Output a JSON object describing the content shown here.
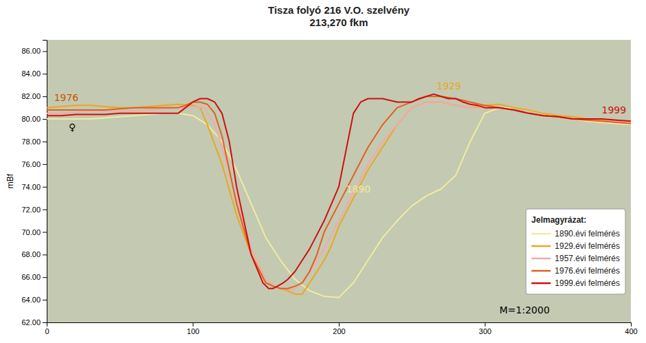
{
  "chart_data": {
    "type": "line",
    "title": "Tisza folyó 216 V.O. szelvény\n213,270 fkm",
    "ylabel": "mBf",
    "xlim": [
      0,
      400
    ],
    "ylim": [
      62.0,
      87.0
    ],
    "xticks": [
      0,
      100,
      200,
      300,
      400
    ],
    "yticks": [
      {
        "value": 62.0,
        "label": "62.00"
      },
      {
        "value": 64.0,
        "label": "64.00"
      },
      {
        "value": 66.0,
        "label": "66.00"
      },
      {
        "value": 68.0,
        "label": "68.00"
      },
      {
        "value": 70.0,
        "label": "70.00"
      },
      {
        "value": 72.0,
        "label": "72.00"
      },
      {
        "value": 74.0,
        "label": "74.00"
      },
      {
        "value": 76.0,
        "label": "76.00"
      },
      {
        "value": 78.0,
        "label": "78.00"
      },
      {
        "value": 80.0,
        "label": "80.00"
      },
      {
        "value": 82.0,
        "label": "82.00"
      },
      {
        "value": 84.0,
        "label": "84.00"
      },
      {
        "value": 86.0,
        "label": "86.00"
      }
    ],
    "grid": false,
    "legend": "lower right",
    "legend_title": "Jelmagyrázat:",
    "series": [
      {
        "name": "1890.évi felmérés",
        "color": "#f0eca0",
        "x": [
          0,
          10,
          20,
          30,
          40,
          50,
          60,
          70,
          80,
          90,
          100,
          110,
          120,
          130,
          140,
          150,
          160,
          170,
          180,
          190,
          200,
          210,
          220,
          230,
          240,
          250,
          260,
          270,
          280,
          290,
          300,
          310,
          320,
          330,
          340,
          350,
          360,
          370,
          380,
          390,
          400
        ],
        "values": [
          80.0,
          80.0,
          80.0,
          80.0,
          80.1,
          80.2,
          80.3,
          80.4,
          80.5,
          80.5,
          80.3,
          79.5,
          78.0,
          75.5,
          72.5,
          69.5,
          67.5,
          65.8,
          64.8,
          64.3,
          64.2,
          65.5,
          67.5,
          69.5,
          71.0,
          72.3,
          73.2,
          73.8,
          75.0,
          78.0,
          80.5,
          81.0,
          81.0,
          80.8,
          80.5,
          80.2,
          80.0,
          79.8,
          79.7,
          79.6,
          79.5
        ]
      },
      {
        "name": "1929.évi felmérés",
        "color": "#e8a820",
        "x": [
          0,
          10,
          20,
          30,
          40,
          50,
          60,
          70,
          80,
          90,
          100,
          105,
          110,
          120,
          130,
          140,
          150,
          160,
          165,
          170,
          175,
          180,
          185,
          190,
          195,
          200,
          210,
          220,
          230,
          240,
          250,
          260,
          270,
          280,
          290,
          300,
          310,
          320,
          330,
          340,
          350,
          360,
          370,
          380,
          390,
          400
        ],
        "values": [
          81.0,
          81.1,
          81.2,
          81.2,
          81.1,
          81.0,
          81.0,
          81.1,
          81.2,
          81.3,
          81.2,
          81.0,
          79.5,
          76.0,
          71.5,
          68.0,
          65.5,
          65.0,
          64.8,
          64.5,
          64.5,
          65.5,
          66.5,
          67.5,
          68.8,
          70.5,
          73.0,
          75.5,
          77.5,
          79.5,
          81.0,
          81.5,
          81.5,
          81.2,
          81.0,
          81.2,
          81.3,
          81.0,
          80.8,
          80.5,
          80.3,
          80.2,
          80.0,
          79.9,
          79.8,
          79.8
        ]
      },
      {
        "name": "1957.évi felmérés",
        "color": "#f0aaaa",
        "x": [
          0,
          10,
          20,
          30,
          40,
          50,
          60,
          70,
          80,
          90,
          100,
          108,
          115,
          120,
          130,
          140,
          150,
          155,
          160,
          165,
          170,
          175,
          180,
          190,
          200,
          210,
          220,
          230,
          240,
          250,
          260,
          270,
          280,
          290,
          300,
          310,
          320,
          330,
          340,
          350,
          360,
          370,
          380,
          390,
          400
        ],
        "values": [
          80.5,
          80.5,
          80.6,
          80.7,
          80.7,
          80.7,
          80.7,
          80.8,
          80.9,
          81.0,
          81.1,
          81.0,
          79.5,
          77.5,
          73.0,
          68.5,
          65.8,
          65.3,
          65.0,
          64.9,
          65.0,
          65.5,
          66.5,
          68.5,
          71.0,
          73.5,
          76.0,
          78.0,
          79.5,
          81.0,
          81.5,
          81.5,
          81.2,
          81.0,
          81.0,
          81.0,
          80.8,
          80.5,
          80.3,
          80.2,
          80.0,
          79.9,
          79.8,
          79.8,
          79.7
        ]
      },
      {
        "name": "1976.évi felmérés",
        "color": "#e06020",
        "x": [
          0,
          10,
          20,
          30,
          40,
          50,
          60,
          70,
          80,
          90,
          95,
          100,
          105,
          110,
          115,
          120,
          125,
          130,
          140,
          150,
          155,
          160,
          165,
          170,
          175,
          180,
          185,
          190,
          200,
          210,
          220,
          230,
          240,
          250,
          260,
          270,
          280,
          290,
          300,
          310,
          320,
          330,
          340,
          350,
          360,
          370,
          380,
          390,
          400
        ],
        "values": [
          80.8,
          80.8,
          80.8,
          80.8,
          80.8,
          80.9,
          81.0,
          81.0,
          81.0,
          81.0,
          81.2,
          81.5,
          81.5,
          81.3,
          80.5,
          78.5,
          75.5,
          72.5,
          68.0,
          65.5,
          65.2,
          65.0,
          65.0,
          65.2,
          65.5,
          66.5,
          68.0,
          70.0,
          72.5,
          75.0,
          77.5,
          79.5,
          81.0,
          81.5,
          82.0,
          82.0,
          81.8,
          81.5,
          81.2,
          81.0,
          80.8,
          80.5,
          80.3,
          80.2,
          80.0,
          79.9,
          79.8,
          79.7,
          79.6
        ]
      },
      {
        "name": "1999.évi felmérés",
        "color": "#cc1010",
        "x": [
          0,
          10,
          20,
          30,
          40,
          50,
          60,
          70,
          80,
          90,
          95,
          100,
          105,
          110,
          115,
          120,
          125,
          130,
          140,
          148,
          152,
          155,
          158,
          162,
          165,
          170,
          175,
          180,
          190,
          200,
          210,
          215,
          220,
          230,
          240,
          250,
          255,
          260,
          265,
          270,
          275,
          280,
          285,
          290,
          295,
          300,
          305,
          310,
          320,
          330,
          340,
          350,
          360,
          370,
          380,
          390,
          400
        ],
        "values": [
          80.3,
          80.3,
          80.4,
          80.4,
          80.4,
          80.5,
          80.5,
          80.5,
          80.5,
          80.5,
          81.0,
          81.5,
          81.8,
          81.8,
          81.5,
          80.5,
          78.0,
          74.0,
          68.0,
          65.5,
          65.0,
          65.0,
          65.2,
          65.5,
          65.8,
          66.5,
          67.5,
          68.5,
          71.0,
          74.0,
          80.5,
          81.5,
          81.8,
          81.8,
          81.5,
          81.5,
          81.8,
          82.0,
          82.2,
          82.0,
          81.8,
          81.8,
          81.5,
          81.3,
          81.2,
          81.0,
          81.0,
          81.0,
          80.8,
          80.5,
          80.3,
          80.2,
          80.0,
          80.0,
          80.0,
          79.9,
          79.8
        ]
      }
    ],
    "annotations": [
      {
        "text": "1976",
        "x": 5,
        "y": 81.6,
        "color": "#cc5500"
      },
      {
        "text": "1929",
        "x": 267,
        "y": 82.6,
        "color": "#e8a820"
      },
      {
        "text": "1890",
        "x": 205,
        "y": 73.5,
        "color": "#f0eca0"
      },
      {
        "text": "1999",
        "x": 380,
        "y": 80.5,
        "color": "#cc1010"
      },
      {
        "text": "♀",
        "x": 15,
        "y": 79.0,
        "color": "black"
      },
      {
        "text": "M=1:2000",
        "x": 310,
        "y": 62.8,
        "color": "black"
      }
    ]
  }
}
